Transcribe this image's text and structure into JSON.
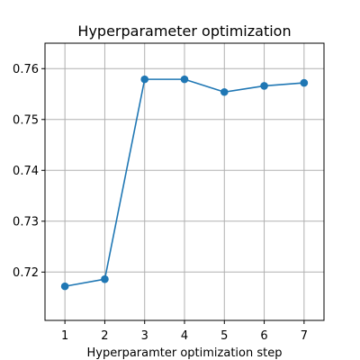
{
  "colors": {
    "series": "#1f77b4",
    "grid": "#b0b0b0",
    "axis": "#000000",
    "background": "#ffffff"
  },
  "chart_data": {
    "type": "line",
    "title": "Hyperparameter optimization",
    "xlabel": "Hyperparamter optimization step",
    "ylabel": "",
    "x": [
      1,
      2,
      3,
      4,
      5,
      6,
      7
    ],
    "series": [
      {
        "values": [
          0.7172,
          0.7186,
          0.7579,
          0.7579,
          0.7554,
          0.7566,
          0.7572
        ],
        "markers": true
      }
    ],
    "xlim": [
      0.5,
      7.5
    ],
    "ylim": [
      0.7105,
      0.765
    ],
    "xticks": [
      1,
      2,
      3,
      4,
      5,
      6,
      7
    ],
    "xtick_labels": [
      "1",
      "2",
      "3",
      "4",
      "5",
      "6",
      "7"
    ],
    "yticks": [
      0.72,
      0.73,
      0.74,
      0.75,
      0.76
    ],
    "ytick_labels": [
      "0.72",
      "0.73",
      "0.74",
      "0.75",
      "0.76"
    ],
    "grid": true,
    "legend": false
  }
}
